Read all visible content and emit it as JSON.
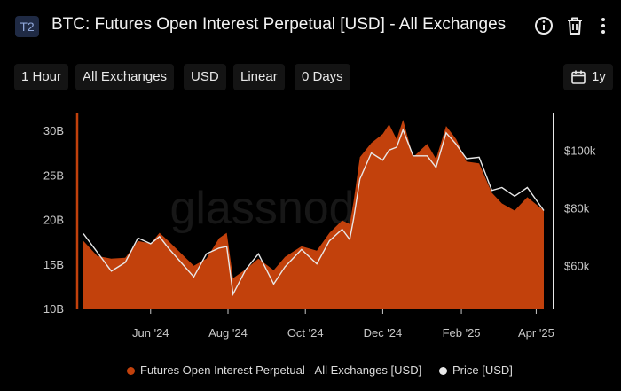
{
  "header": {
    "badge": "T2",
    "title": "BTC: Futures Open Interest Perpetual [USD] - All Exchanges",
    "icons": [
      "info-icon",
      "trash-icon",
      "more-icon"
    ]
  },
  "toolbar": {
    "resolution": "1 Hour",
    "exchange": "All Exchanges",
    "currency": "USD",
    "scale": "Linear",
    "sma": "0 Days",
    "range_icon": "calendar-icon",
    "range": "1y"
  },
  "watermark": "glassnode",
  "colors": {
    "oi": "#c2410c",
    "price": "#e8e8e8",
    "bg": "#000000",
    "tick": "#c8c8c8"
  },
  "chart_data": {
    "type": "area",
    "title": "BTC: Futures Open Interest Perpetual [USD] - All Exchanges",
    "x_start": "2024-04-09",
    "x_end": "2025-04-07",
    "x_ticks": [
      {
        "label": "Jun '24",
        "date": "2024-06-01"
      },
      {
        "label": "Aug '24",
        "date": "2024-08-01"
      },
      {
        "label": "Oct '24",
        "date": "2024-10-01"
      },
      {
        "label": "Dec '24",
        "date": "2024-12-01"
      },
      {
        "label": "Feb '25",
        "date": "2025-02-01"
      },
      {
        "label": "Apr '25",
        "date": "2025-04-01"
      }
    ],
    "left_axis": {
      "ylim": [
        10000000000,
        32000000000
      ],
      "ticks": [
        {
          "v": 10000000000,
          "label": "10B"
        },
        {
          "v": 15000000000,
          "label": "15B"
        },
        {
          "v": 20000000000,
          "label": "20B"
        },
        {
          "v": 25000000000,
          "label": "25B"
        },
        {
          "v": 30000000000,
          "label": "30B"
        }
      ]
    },
    "right_axis": {
      "ylim": [
        45000,
        113000
      ],
      "ticks": [
        {
          "v": 60000,
          "label": "$60k"
        },
        {
          "v": 80000,
          "label": "$80k"
        },
        {
          "v": 100000,
          "label": "$100k"
        }
      ]
    },
    "series": [
      {
        "name": "Futures Open Interest Perpetual - All Exchanges [USD]",
        "axis": "left",
        "kind": "area",
        "points": [
          [
            "2024-04-09",
            17600000000.0
          ],
          [
            "2024-04-20",
            15900000000.0
          ],
          [
            "2024-05-01",
            15600000000.0
          ],
          [
            "2024-05-12",
            15700000000.0
          ],
          [
            "2024-05-22",
            17600000000.0
          ],
          [
            "2024-06-01",
            17300000000.0
          ],
          [
            "2024-06-08",
            18500000000.0
          ],
          [
            "2024-06-15",
            17600000000.0
          ],
          [
            "2024-06-25",
            16200000000.0
          ],
          [
            "2024-07-05",
            14800000000.0
          ],
          [
            "2024-07-15",
            15600000000.0
          ],
          [
            "2024-07-25",
            17900000000.0
          ],
          [
            "2024-07-31",
            18500000000.0
          ],
          [
            "2024-08-05",
            13400000000.0
          ],
          [
            "2024-08-15",
            14400000000.0
          ],
          [
            "2024-08-25",
            15600000000.0
          ],
          [
            "2024-09-06",
            14300000000.0
          ],
          [
            "2024-09-15",
            15800000000.0
          ],
          [
            "2024-09-28",
            17000000000.0
          ],
          [
            "2024-10-10",
            16500000000.0
          ],
          [
            "2024-10-20",
            18500000000.0
          ],
          [
            "2024-10-30",
            19900000000.0
          ],
          [
            "2024-11-05",
            19500000000.0
          ],
          [
            "2024-11-08",
            22000000000.0
          ],
          [
            "2024-11-13",
            27000000000.0
          ],
          [
            "2024-11-22",
            28600000000.0
          ],
          [
            "2024-12-01",
            29600000000.0
          ],
          [
            "2024-12-06",
            30700000000.0
          ],
          [
            "2024-12-12",
            29000000000.0
          ],
          [
            "2024-12-17",
            31200000000.0
          ],
          [
            "2024-12-25",
            27000000000.0
          ],
          [
            "2025-01-05",
            28500000000.0
          ],
          [
            "2025-01-12",
            26800000000.0
          ],
          [
            "2025-01-20",
            30500000000.0
          ],
          [
            "2025-01-28",
            29000000000.0
          ],
          [
            "2025-02-05",
            26500000000.0
          ],
          [
            "2025-02-15",
            26300000000.0
          ],
          [
            "2025-02-25",
            23000000000.0
          ],
          [
            "2025-03-05",
            21800000000.0
          ],
          [
            "2025-03-15",
            21000000000.0
          ],
          [
            "2025-03-25",
            22500000000.0
          ],
          [
            "2025-04-07",
            21000000000.0
          ]
        ]
      },
      {
        "name": "Price [USD]",
        "axis": "right",
        "kind": "line",
        "points": [
          [
            "2024-04-09",
            71000
          ],
          [
            "2024-04-20",
            64500
          ],
          [
            "2024-05-01",
            58000
          ],
          [
            "2024-05-12",
            61000
          ],
          [
            "2024-05-22",
            69500
          ],
          [
            "2024-06-01",
            67500
          ],
          [
            "2024-06-08",
            70000
          ],
          [
            "2024-06-15",
            66000
          ],
          [
            "2024-06-25",
            61000
          ],
          [
            "2024-07-05",
            56000
          ],
          [
            "2024-07-15",
            64000
          ],
          [
            "2024-07-25",
            66000
          ],
          [
            "2024-07-31",
            66500
          ],
          [
            "2024-08-05",
            50000
          ],
          [
            "2024-08-15",
            58500
          ],
          [
            "2024-08-25",
            64000
          ],
          [
            "2024-09-06",
            53500
          ],
          [
            "2024-09-15",
            59500
          ],
          [
            "2024-09-28",
            65500
          ],
          [
            "2024-10-10",
            60500
          ],
          [
            "2024-10-20",
            68500
          ],
          [
            "2024-10-30",
            72500
          ],
          [
            "2024-11-05",
            69000
          ],
          [
            "2024-11-08",
            76000
          ],
          [
            "2024-11-13",
            90000
          ],
          [
            "2024-11-22",
            99000
          ],
          [
            "2024-12-01",
            96500
          ],
          [
            "2024-12-06",
            100000
          ],
          [
            "2024-12-12",
            101000
          ],
          [
            "2024-12-17",
            107000
          ],
          [
            "2024-12-25",
            98000
          ],
          [
            "2025-01-05",
            98000
          ],
          [
            "2025-01-12",
            94000
          ],
          [
            "2025-01-20",
            106000
          ],
          [
            "2025-01-28",
            102000
          ],
          [
            "2025-02-05",
            97000
          ],
          [
            "2025-02-15",
            97500
          ],
          [
            "2025-02-25",
            86000
          ],
          [
            "2025-03-05",
            87000
          ],
          [
            "2025-03-15",
            84000
          ],
          [
            "2025-03-25",
            87000
          ],
          [
            "2025-04-07",
            79000
          ]
        ]
      }
    ],
    "legend": [
      {
        "label": "Futures Open Interest Perpetual - All Exchanges [USD]",
        "color": "#c2410c"
      },
      {
        "label": "Price [USD]",
        "color": "#e8e8e8"
      }
    ],
    "legend_position": "bottom-center",
    "grid": false
  }
}
